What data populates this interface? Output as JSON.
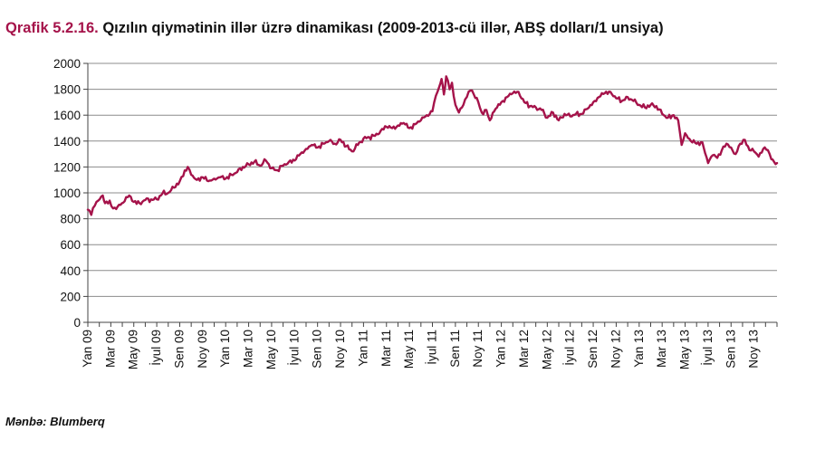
{
  "title_prefix": "Qrafik 5.2.16.",
  "title_text": "Qızılın qiymətinin illər üzrə dinamikası (2009-2013-cü illər, ABŞ dolları/1 unsiya)",
  "source": "Mənbə: Blumberq",
  "colors": {
    "line": "#a5134a",
    "title_accent": "#a5134a",
    "grid": "#8c8c8c"
  },
  "chart_data": {
    "type": "line",
    "title": "Qızılın qiymətinin illər üzrə dinamikası (2009-2013-cü illər, ABŞ dolları/1 unsiya)",
    "xlabel": "",
    "ylabel": "",
    "ylim": [
      0,
      2000
    ],
    "yticks": [
      0,
      200,
      400,
      600,
      800,
      1000,
      1200,
      1400,
      1600,
      1800,
      2000
    ],
    "grid": true,
    "legend": "none",
    "categories": [
      "Yan 09",
      "Mar 09",
      "May 09",
      "İyul 09",
      "Sen 09",
      "Noy 09",
      "Yan 10",
      "Mar 10",
      "May 10",
      "İyul 10",
      "Sen 10",
      "Noy 10",
      "Yan 11",
      "Mar 11",
      "May 11",
      "İyul 11",
      "Sen 11",
      "Noy 11",
      "Yan 12",
      "Mar 12",
      "May 12",
      "İyul 12",
      "Sen 12",
      "Noy 12",
      "Yan 13",
      "Mar 13",
      "May 13",
      "İyul 13",
      "Sen 13",
      "Noy 13"
    ],
    "series": [
      {
        "values": [
          [
            0,
            870
          ],
          [
            0.3,
            830
          ],
          [
            0.6,
            900
          ],
          [
            0.9,
            940
          ],
          [
            1.3,
            980
          ],
          [
            1.5,
            920
          ],
          [
            1.9,
            940
          ],
          [
            2.2,
            880
          ],
          [
            2.6,
            895
          ],
          [
            3.2,
            935
          ],
          [
            3.6,
            980
          ],
          [
            4.0,
            930
          ],
          [
            4.5,
            920
          ],
          [
            5.0,
            945
          ],
          [
            5.5,
            950
          ],
          [
            6.0,
            950
          ],
          [
            6.5,
            995
          ],
          [
            7.0,
            1000
          ],
          [
            7.5,
            1040
          ],
          [
            8.0,
            1090
          ],
          [
            8.3,
            1130
          ],
          [
            8.7,
            1200
          ],
          [
            9.0,
            1140
          ],
          [
            9.5,
            1100
          ],
          [
            10.0,
            1120
          ],
          [
            10.5,
            1090
          ],
          [
            11.0,
            1110
          ],
          [
            11.5,
            1120
          ],
          [
            12.0,
            1110
          ],
          [
            12.5,
            1140
          ],
          [
            13.0,
            1160
          ],
          [
            13.5,
            1200
          ],
          [
            14.0,
            1220
          ],
          [
            14.5,
            1240
          ],
          [
            15.0,
            1210
          ],
          [
            15.5,
            1250
          ],
          [
            16.0,
            1190
          ],
          [
            16.5,
            1175
          ],
          [
            17.0,
            1210
          ],
          [
            17.5,
            1240
          ],
          [
            18.0,
            1250
          ],
          [
            18.5,
            1300
          ],
          [
            19.0,
            1340
          ],
          [
            19.5,
            1370
          ],
          [
            20.0,
            1350
          ],
          [
            20.5,
            1380
          ],
          [
            21.0,
            1400
          ],
          [
            21.5,
            1380
          ],
          [
            22.0,
            1410
          ],
          [
            22.5,
            1360
          ],
          [
            23.0,
            1320
          ],
          [
            23.5,
            1370
          ],
          [
            24.0,
            1420
          ],
          [
            24.5,
            1430
          ],
          [
            25.0,
            1440
          ],
          [
            25.5,
            1480
          ],
          [
            26.0,
            1510
          ],
          [
            26.5,
            1500
          ],
          [
            27.0,
            1520
          ],
          [
            27.5,
            1540
          ],
          [
            28.0,
            1500
          ],
          [
            28.5,
            1530
          ],
          [
            29.0,
            1560
          ],
          [
            29.5,
            1600
          ],
          [
            30.0,
            1630
          ],
          [
            30.3,
            1750
          ],
          [
            30.6,
            1820
          ],
          [
            30.8,
            1880
          ],
          [
            31.0,
            1760
          ],
          [
            31.2,
            1900
          ],
          [
            31.5,
            1800
          ],
          [
            31.7,
            1850
          ],
          [
            32.0,
            1680
          ],
          [
            32.3,
            1620
          ],
          [
            32.7,
            1680
          ],
          [
            33.0,
            1740
          ],
          [
            33.3,
            1790
          ],
          [
            33.6,
            1760
          ],
          [
            34.0,
            1700
          ],
          [
            34.3,
            1620
          ],
          [
            34.7,
            1640
          ],
          [
            35.0,
            1560
          ],
          [
            35.5,
            1650
          ],
          [
            36.0,
            1700
          ],
          [
            36.5,
            1740
          ],
          [
            37.0,
            1770
          ],
          [
            37.5,
            1780
          ],
          [
            38.0,
            1700
          ],
          [
            38.5,
            1670
          ],
          [
            39.0,
            1660
          ],
          [
            39.5,
            1640
          ],
          [
            40.0,
            1580
          ],
          [
            40.5,
            1620
          ],
          [
            41.0,
            1560
          ],
          [
            41.5,
            1610
          ],
          [
            42.0,
            1590
          ],
          [
            42.5,
            1610
          ],
          [
            43.0,
            1610
          ],
          [
            43.5,
            1650
          ],
          [
            44.0,
            1700
          ],
          [
            44.5,
            1740
          ],
          [
            45.0,
            1770
          ],
          [
            45.5,
            1780
          ],
          [
            46.0,
            1730
          ],
          [
            46.5,
            1710
          ],
          [
            47.0,
            1740
          ],
          [
            47.5,
            1710
          ],
          [
            48.0,
            1680
          ],
          [
            48.5,
            1660
          ],
          [
            49.0,
            1680
          ],
          [
            49.5,
            1670
          ],
          [
            50.0,
            1610
          ],
          [
            50.5,
            1580
          ],
          [
            51.0,
            1600
          ],
          [
            51.4,
            1560
          ],
          [
            51.7,
            1370
          ],
          [
            52.0,
            1460
          ],
          [
            52.5,
            1400
          ],
          [
            53.0,
            1380
          ],
          [
            53.5,
            1390
          ],
          [
            54.0,
            1230
          ],
          [
            54.4,
            1290
          ],
          [
            54.8,
            1270
          ],
          [
            55.2,
            1330
          ],
          [
            55.6,
            1380
          ],
          [
            56.0,
            1350
          ],
          [
            56.4,
            1300
          ],
          [
            56.8,
            1380
          ],
          [
            57.2,
            1410
          ],
          [
            57.6,
            1330
          ],
          [
            58.0,
            1320
          ],
          [
            58.4,
            1280
          ],
          [
            58.8,
            1340
          ],
          [
            59.2,
            1330
          ],
          [
            59.5,
            1260
          ],
          [
            60.0,
            1230
          ]
        ]
      }
    ]
  }
}
